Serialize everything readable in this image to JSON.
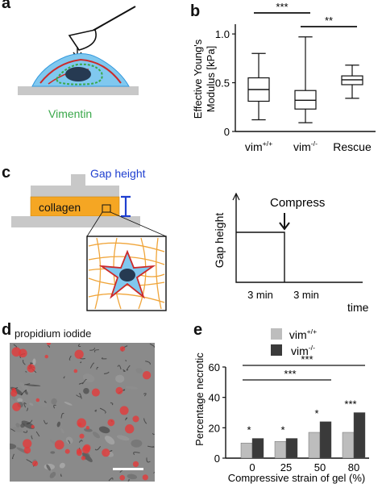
{
  "panels": {
    "a": "a",
    "b": "b",
    "c": "c",
    "d": "d",
    "e": "e"
  },
  "panel_a": {
    "label": "Vimentin",
    "label_color": "#3aa84a"
  },
  "panel_b": {
    "chart_data": {
      "type": "box",
      "ylabel_line1": "Effective Young's",
      "ylabel_line2": "Modulus [kPa]",
      "ylim": [
        0,
        1.1
      ],
      "yticks": [
        "0",
        "0.5",
        "1.0"
      ],
      "yticks_values": [
        0,
        0.5,
        1.0
      ],
      "categories": [
        {
          "label": "vim",
          "sup": "+/+"
        },
        {
          "label": "vim",
          "sup": "-/-"
        },
        {
          "label": "Rescue",
          "sup": ""
        }
      ],
      "boxes": [
        {
          "min": 0.12,
          "q1": 0.31,
          "median": 0.43,
          "q3": 0.55,
          "max": 0.8
        },
        {
          "min": 0.09,
          "q1": 0.23,
          "median": 0.32,
          "q3": 0.42,
          "max": 0.97
        },
        {
          "min": 0.34,
          "q1": 0.48,
          "median": 0.53,
          "q3": 0.57,
          "max": 0.68
        }
      ],
      "significance": [
        {
          "from": 0,
          "to": 1,
          "label": "***"
        },
        {
          "from": 1,
          "to": 2,
          "label": "**"
        }
      ]
    }
  },
  "panel_c": {
    "gap_label": "Gap height",
    "gap_color": "#1f3fd0",
    "collagen_label": "collagen",
    "collagen_color": "#f5a623",
    "timeline": {
      "ylabel": "Gap height",
      "xlabel": "time",
      "compress_label": "Compress",
      "segments": [
        "3 min",
        "3 min"
      ]
    }
  },
  "panel_d": {
    "label": "propidium iodide",
    "label_color": "#e03030"
  },
  "panel_e": {
    "chart_data": {
      "type": "bar",
      "ylabel": "Percentage necrotic",
      "xlabel": "Compressive strain of gel (%)",
      "ylim": [
        0,
        60
      ],
      "yticks": [
        "0",
        "20",
        "40",
        "60"
      ],
      "yticks_values": [
        0,
        20,
        40,
        60
      ],
      "categories": [
        "0",
        "25",
        "50",
        "80"
      ],
      "series": [
        {
          "name": "vim",
          "sup": "+/+",
          "color": "#bdbdbd",
          "values": [
            10,
            11,
            17,
            17
          ]
        },
        {
          "name": "vim",
          "sup": "-/-",
          "color": "#3a3a3a",
          "values": [
            13,
            13,
            24,
            30
          ]
        }
      ],
      "star_labels": [
        "*",
        "*",
        "*",
        "***"
      ],
      "significance": [
        {
          "label": "***",
          "from": 0,
          "to": 3
        },
        {
          "label": "***",
          "from": 0,
          "to": 2
        }
      ]
    }
  }
}
